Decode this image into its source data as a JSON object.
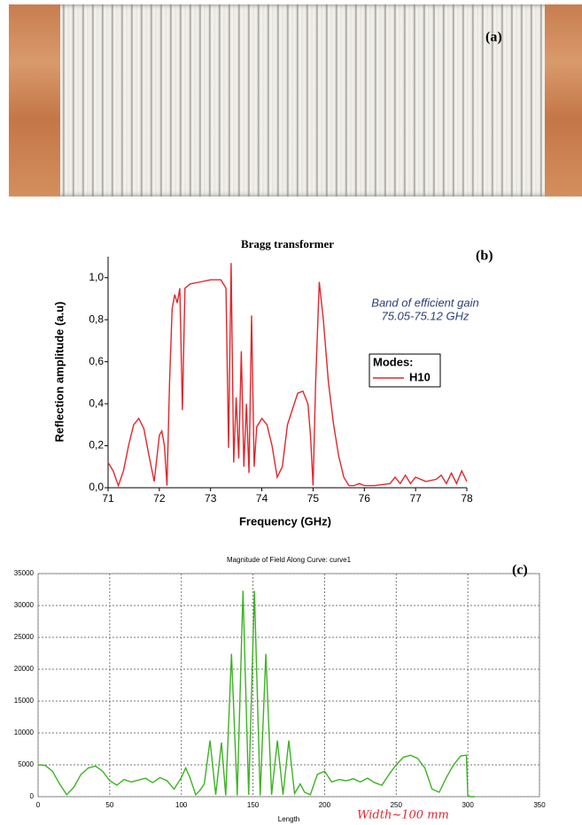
{
  "photo": {
    "label": "(a)"
  },
  "chart_data": [
    {
      "type": "line",
      "label": "(b)",
      "title": "Bragg transformer",
      "x_label": "Frequency (GHz)",
      "y_label": "Reflection amplitude (a.u)",
      "annotations": [
        "Band of efficient gain",
        "75.05-75.12 GHz"
      ],
      "legend_title": "Modes:",
      "xlim": [
        71,
        78
      ],
      "xticks": [
        71,
        72,
        73,
        74,
        75,
        76,
        77,
        78
      ],
      "ylim": [
        0,
        1.1
      ],
      "yticks": [
        {
          "value": 0,
          "label": "0,0"
        },
        {
          "value": 0.2,
          "label": "0,2"
        },
        {
          "value": 0.4,
          "label": "0,4"
        },
        {
          "value": 0.6,
          "label": "0,6"
        },
        {
          "value": 0.8,
          "label": "0,8"
        },
        {
          "value": 1.0,
          "label": "1,0"
        }
      ],
      "grid": false,
      "x": [
        71.0,
        71.1,
        71.2,
        71.3,
        71.4,
        71.5,
        71.6,
        71.7,
        71.8,
        71.9,
        72.0,
        72.05,
        72.1,
        72.15,
        72.2,
        72.25,
        72.3,
        72.35,
        72.4,
        72.45,
        72.5,
        72.6,
        72.8,
        73.0,
        73.2,
        73.3,
        73.35,
        73.4,
        73.45,
        73.5,
        73.55,
        73.6,
        73.65,
        73.7,
        73.75,
        73.8,
        73.85,
        73.9,
        74.0,
        74.1,
        74.2,
        74.3,
        74.4,
        74.5,
        74.7,
        74.8,
        74.9,
        74.95,
        75.0,
        75.05,
        75.12,
        75.2,
        75.3,
        75.4,
        75.5,
        75.6,
        75.7,
        75.8,
        75.9,
        76.0,
        76.2,
        76.5,
        76.6,
        76.7,
        76.8,
        76.9,
        77.0,
        77.2,
        77.4,
        77.5,
        77.6,
        77.7,
        77.8,
        77.9,
        78.0
      ],
      "series": [
        {
          "name": "H10",
          "color": "#e3262b",
          "values": [
            0.12,
            0.08,
            0.01,
            0.08,
            0.2,
            0.3,
            0.33,
            0.28,
            0.15,
            0.03,
            0.25,
            0.27,
            0.2,
            0.01,
            0.5,
            0.85,
            0.92,
            0.88,
            0.95,
            0.37,
            0.95,
            0.97,
            0.98,
            0.99,
            0.99,
            0.95,
            0.19,
            1.07,
            0.12,
            0.43,
            0.14,
            0.65,
            0.1,
            0.4,
            0.07,
            0.82,
            0.1,
            0.29,
            0.33,
            0.3,
            0.2,
            0.05,
            0.1,
            0.3,
            0.45,
            0.46,
            0.4,
            0.25,
            0.01,
            0.5,
            0.98,
            0.8,
            0.5,
            0.3,
            0.15,
            0.05,
            0.01,
            0.01,
            0.02,
            0.01,
            0.01,
            0.02,
            0.05,
            0.02,
            0.06,
            0.02,
            0.05,
            0.03,
            0.04,
            0.06,
            0.02,
            0.07,
            0.02,
            0.08,
            0.03
          ]
        }
      ]
    },
    {
      "type": "line",
      "label": "(c)",
      "title": "Magnitude of Field Along Curve: curve1",
      "x_label": "Length",
      "annotations": [
        "Width~100 mm"
      ],
      "xlim": [
        0,
        350
      ],
      "xticks": [
        0,
        50,
        100,
        150,
        200,
        250,
        300,
        350
      ],
      "ylim": [
        0,
        35000
      ],
      "yticks": [
        0,
        5000,
        10000,
        15000,
        20000,
        25000,
        30000,
        35000
      ],
      "grid": true,
      "x": [
        0,
        5,
        10,
        15,
        20,
        25,
        30,
        35,
        40,
        45,
        50,
        55,
        60,
        65,
        70,
        75,
        80,
        85,
        90,
        95,
        100,
        103,
        106,
        110,
        113,
        116,
        120,
        124,
        128,
        131,
        135,
        139,
        143,
        147,
        151,
        155,
        159,
        163,
        167,
        171,
        175,
        179,
        183,
        186,
        190,
        195,
        200,
        205,
        210,
        215,
        220,
        225,
        230,
        235,
        240,
        245,
        250,
        255,
        260,
        265,
        270,
        275,
        280,
        285,
        290,
        295,
        299,
        300,
        302,
        305
      ],
      "series": [
        {
          "color": "#3cb322",
          "values": [
            5000,
            4900,
            4000,
            2000,
            300,
            1500,
            3500,
            4500,
            4800,
            4000,
            2500,
            1800,
            2700,
            2300,
            2600,
            2900,
            2200,
            3000,
            2500,
            1200,
            3000,
            4500,
            3000,
            300,
            1000,
            2000,
            8800,
            300,
            8500,
            200,
            22400,
            200,
            32300,
            300,
            32300,
            200,
            22400,
            300,
            8800,
            300,
            8800,
            500,
            2000,
            700,
            300,
            3500,
            4000,
            2300,
            2700,
            2500,
            2800,
            2300,
            2900,
            2200,
            1800,
            3500,
            5000,
            6200,
            6500,
            6000,
            4500,
            1200,
            700,
            3000,
            5000,
            6400,
            6500,
            200,
            0,
            0
          ]
        }
      ]
    }
  ]
}
